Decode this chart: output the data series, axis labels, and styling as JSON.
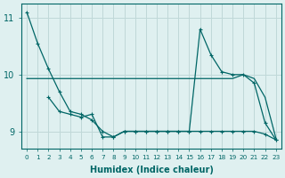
{
  "title": "",
  "xlabel": "Humidex (Indice chaleur)",
  "ylabel": "",
  "background_color": "#dff0f0",
  "grid_color": "#c0d8d8",
  "line_color": "#006666",
  "xlim": [
    -0.5,
    23.5
  ],
  "ylim": [
    8.7,
    11.25
  ],
  "yticks": [
    9,
    10,
    11
  ],
  "xticks": [
    0,
    1,
    2,
    3,
    4,
    5,
    6,
    7,
    8,
    9,
    10,
    11,
    12,
    13,
    14,
    15,
    16,
    17,
    18,
    19,
    20,
    21,
    22,
    23
  ],
  "series1_x": [
    0,
    1,
    2,
    3,
    4,
    5,
    6,
    7,
    8,
    9,
    10,
    11,
    12,
    13,
    14,
    15,
    16,
    17,
    18,
    19,
    20,
    21,
    22,
    23
  ],
  "series1_y": [
    11.1,
    10.55,
    10.1,
    9.7,
    9.35,
    9.3,
    9.2,
    9.0,
    8.9,
    9.0,
    9.0,
    9.0,
    9.0,
    9.0,
    9.0,
    9.0,
    9.0,
    9.0,
    9.0,
    9.0,
    9.0,
    9.0,
    8.95,
    8.85
  ],
  "series2_x": [
    0,
    1,
    2,
    3,
    4,
    5,
    6,
    7,
    8,
    9,
    10,
    11,
    12,
    13,
    14,
    15,
    16,
    17,
    18,
    19,
    20,
    21,
    22,
    23
  ],
  "series2_y": [
    9.93,
    9.93,
    9.93,
    9.93,
    9.93,
    9.93,
    9.93,
    9.93,
    9.93,
    9.93,
    9.93,
    9.93,
    9.93,
    9.93,
    9.93,
    9.93,
    9.93,
    9.93,
    9.93,
    9.93,
    10.0,
    9.93,
    9.6,
    8.88
  ],
  "series3_x": [
    2,
    3,
    4,
    5,
    6,
    7,
    8,
    9,
    10,
    11,
    12,
    13,
    14,
    15,
    16,
    17,
    18,
    19,
    20,
    21,
    22,
    23
  ],
  "series3_y": [
    9.6,
    9.35,
    9.3,
    9.25,
    9.3,
    8.9,
    8.9,
    9.0,
    9.0,
    9.0,
    9.0,
    9.0,
    9.0,
    9.0,
    10.8,
    10.35,
    10.05,
    10.0,
    10.0,
    9.85,
    9.15,
    8.85
  ]
}
